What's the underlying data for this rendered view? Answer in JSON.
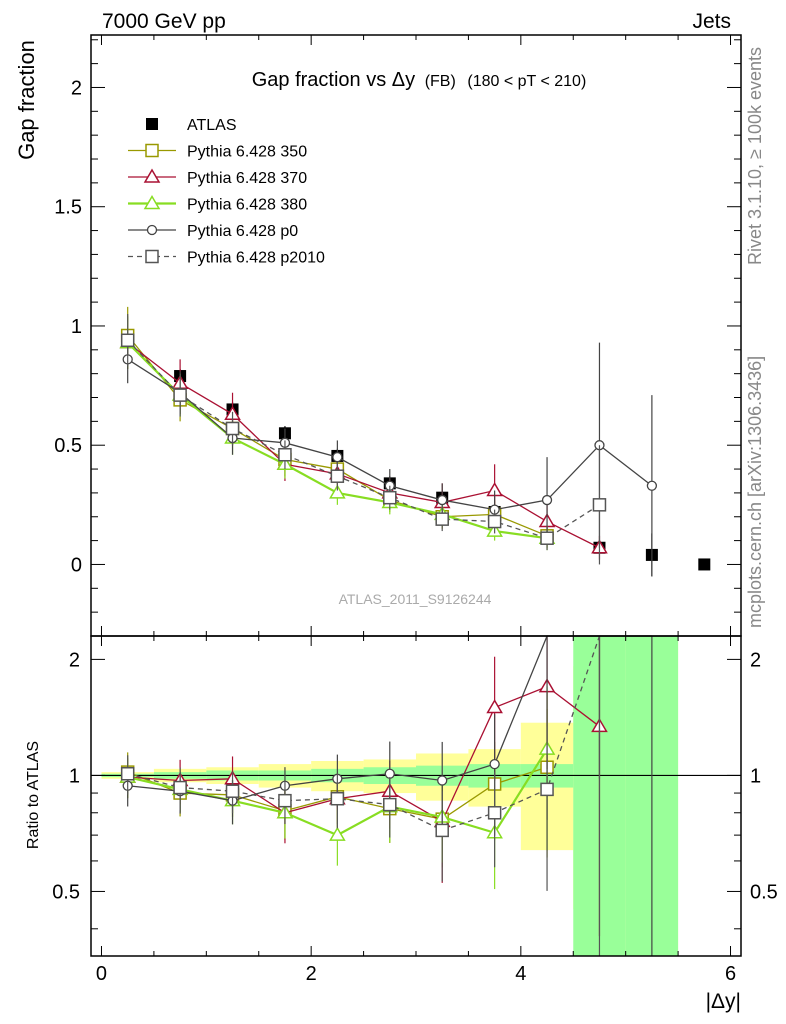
{
  "header": {
    "left": "7000 GeV pp",
    "right": "Jets"
  },
  "side_labels": {
    "rivet": "Rivet 3.1.10, ≥ 100k events",
    "mcplots": "mcplots.cern.ch [arXiv:1306.3436]"
  },
  "watermark": "ATLAS_2011_S9126244",
  "chart_data": {
    "type": "scatter",
    "title": "Gap fraction vs Δy",
    "title_extra": "(FB)",
    "subtitle": "(180 < pT < 210)",
    "ylabel": "Gap fraction",
    "ratio_ylabel": "Ratio to ATLAS",
    "xlabel": "|Δy|",
    "xlim": [
      -0.1,
      6.1
    ],
    "ylim": [
      -0.3,
      2.22
    ],
    "ratio_ylim": [
      0.34,
      2.3
    ],
    "x_ticks": [
      0,
      2,
      4,
      6
    ],
    "y_ticks": [
      0,
      0.5,
      1,
      1.5,
      2
    ],
    "y_tick_labels": [
      "0",
      "0.5",
      "1",
      "1.5",
      "2"
    ],
    "ratio_y_ticks": [
      0.5,
      1,
      2
    ],
    "x": [
      0.25,
      0.75,
      1.25,
      1.75,
      2.25,
      2.75,
      3.25,
      3.75,
      4.25,
      4.75,
      5.25,
      5.75
    ],
    "series": [
      {
        "name": "ATLAS",
        "color": "#000000",
        "marker": "filled-square",
        "line": "none",
        "values": [
          0.94,
          0.79,
          0.65,
          0.55,
          0.455,
          0.34,
          0.28,
          0.22,
          0.115,
          0.07,
          0.04,
          0.0
        ],
        "ratio": [
          1,
          1,
          1,
          1,
          1,
          1,
          1,
          1,
          1,
          1,
          1,
          1
        ],
        "errors": [
          0.03,
          0.03,
          0.03,
          0.03,
          0.03,
          0.03,
          0.03,
          0.03,
          0.03,
          0.02,
          0.09,
          0.005
        ]
      },
      {
        "name": "Pythia 6.428 350",
        "color": "#999900",
        "marker": "open-square",
        "line": "solid",
        "values": [
          0.96,
          0.69,
          0.57,
          0.44,
          0.4,
          0.27,
          0.2,
          0.21,
          0.12
        ],
        "ratio": [
          1.02,
          0.9,
          0.89,
          0.81,
          0.88,
          0.82,
          0.77,
          0.95,
          1.05
        ],
        "errors": [
          0.12,
          0.09,
          0.07,
          0.07,
          0.06,
          0.05,
          0.05,
          0.06,
          0.05
        ]
      },
      {
        "name": "Pythia 6.428 370",
        "color": "#aa1133",
        "marker": "open-triangle",
        "line": "solid",
        "values": [
          0.93,
          0.76,
          0.63,
          0.42,
          0.38,
          0.3,
          0.26,
          0.31,
          0.18,
          0.07
        ],
        "ratio": [
          0.99,
          0.97,
          0.98,
          0.8,
          0.87,
          0.91,
          0.76,
          1.5,
          1.7,
          1.34
        ],
        "errors": [
          0.11,
          0.1,
          0.09,
          0.07,
          0.06,
          0.06,
          0.08,
          0.11,
          0.07,
          0.05
        ]
      },
      {
        "name": "Pythia 6.428 380",
        "color": "#88dd22",
        "marker": "open-triangle",
        "line": "solid",
        "values": [
          0.93,
          0.71,
          0.53,
          0.42,
          0.3,
          0.26,
          0.21,
          0.14,
          0.11
        ],
        "ratio": [
          0.99,
          0.92,
          0.86,
          0.8,
          0.7,
          0.83,
          0.78,
          0.71,
          1.17
        ],
        "errors": [
          0.11,
          0.09,
          0.07,
          0.06,
          0.05,
          0.05,
          0.05,
          0.04,
          0.05
        ]
      },
      {
        "name": "Pythia 6.428 p0",
        "color": "#444444",
        "marker": "open-circle",
        "line": "solid",
        "values": [
          0.86,
          0.72,
          0.53,
          0.51,
          0.45,
          0.33,
          0.27,
          0.23,
          0.27,
          0.5,
          0.33
        ],
        "ratio": [
          0.94,
          0.91,
          0.86,
          0.94,
          0.98,
          1.01,
          0.97,
          1.07,
          2.3,
          7.0,
          8.3
        ],
        "errors": [
          0.1,
          0.09,
          0.07,
          0.06,
          0.07,
          0.07,
          0.07,
          0.08,
          0.18,
          0.43,
          0.38
        ]
      },
      {
        "name": "Pythia 6.428 p2010",
        "color": "#555555",
        "marker": "open-square",
        "line": "dashed",
        "values": [
          0.94,
          0.71,
          0.57,
          0.46,
          0.37,
          0.28,
          0.19,
          0.18,
          0.11,
          0.25
        ],
        "ratio": [
          1.01,
          0.93,
          0.91,
          0.86,
          0.87,
          0.84,
          0.72,
          0.8,
          0.92,
          3.5
        ],
        "errors": [
          0.11,
          0.09,
          0.07,
          0.06,
          0.06,
          0.05,
          0.05,
          0.05,
          0.05,
          0.25
        ]
      }
    ],
    "ratio_bands": {
      "x_edges": [
        0,
        0.5,
        1.0,
        1.5,
        2.0,
        2.5,
        3.0,
        3.5,
        4.0,
        4.5,
        5.0,
        5.5
      ],
      "green": [
        [
          0.99,
          1.01
        ],
        [
          0.98,
          1.02
        ],
        [
          0.97,
          1.03
        ],
        [
          0.97,
          1.03
        ],
        [
          0.96,
          1.04
        ],
        [
          0.95,
          1.05
        ],
        [
          0.94,
          1.06
        ],
        [
          0.93,
          1.07
        ],
        [
          0.93,
          1.07
        ],
        [
          0.0,
          2.3
        ],
        [
          0.0,
          2.3
        ]
      ],
      "yellow": [
        [
          0.98,
          1.02
        ],
        [
          0.96,
          1.04
        ],
        [
          0.95,
          1.05
        ],
        [
          0.93,
          1.07
        ],
        [
          0.91,
          1.09
        ],
        [
          0.9,
          1.1
        ],
        [
          0.86,
          1.14
        ],
        [
          0.83,
          1.17
        ],
        [
          0.64,
          1.37
        ],
        [
          0.45,
          1.92
        ],
        [
          0.0,
          2.3
        ]
      ]
    },
    "grid": false,
    "legend_placement": "top-left"
  }
}
